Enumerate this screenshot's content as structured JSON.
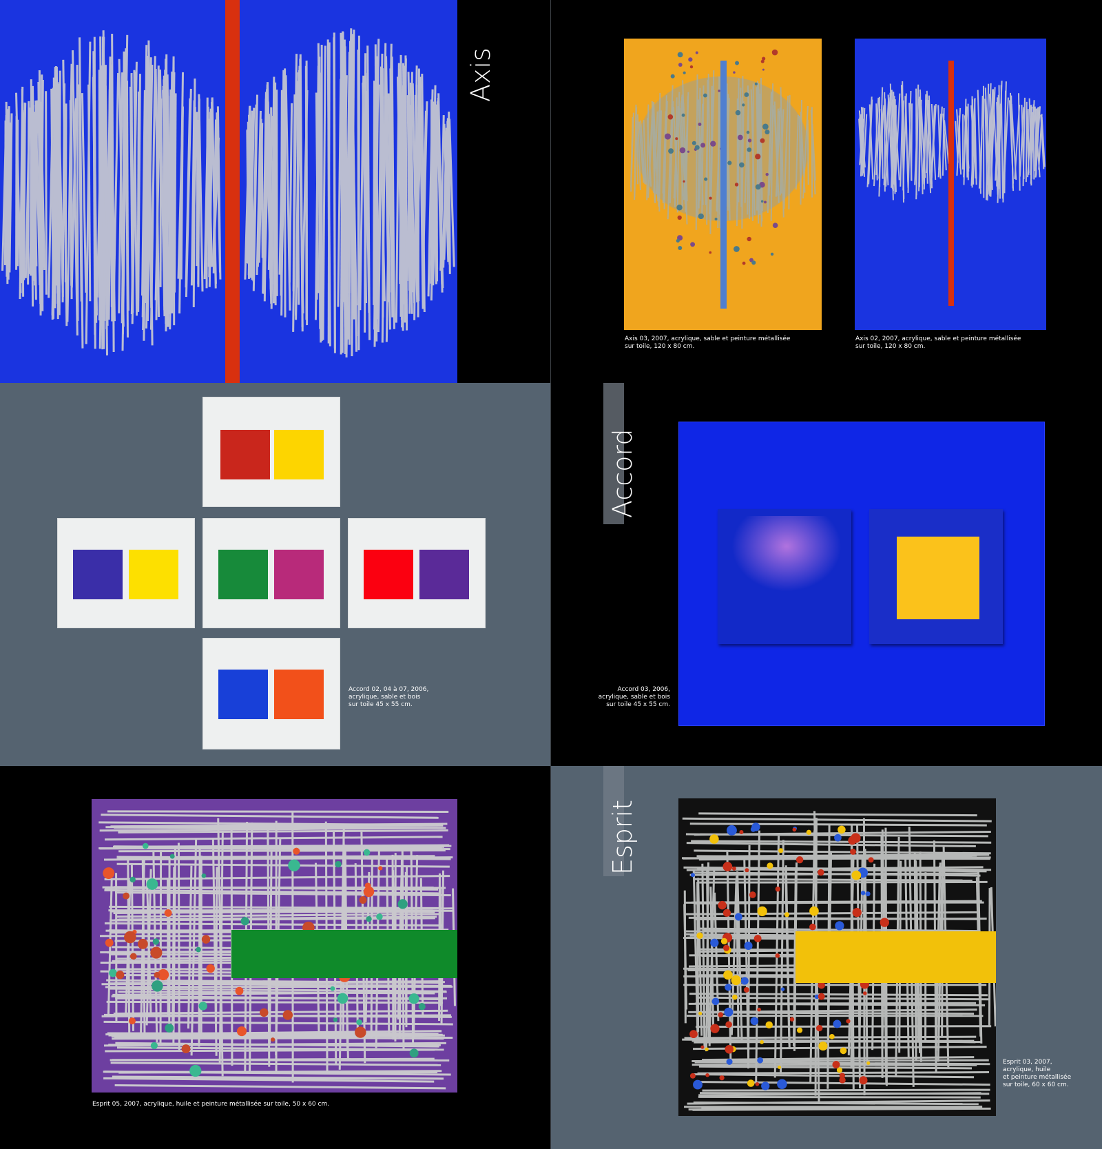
{
  "sections": {
    "axis": {
      "title": "Axis",
      "captions": {
        "axis03": "Axis 03, 2007, acrylique, sable et peinture métallisée\nsur toile, 120 x 80 cm.",
        "axis02": "Axis 02, 2007, acrylique, sable et peinture métallisée\nsur toile, 120 x 80 cm."
      }
    },
    "accord": {
      "title": "Accord",
      "captions": {
        "accord02": "Accord 02, 04 à 07, 2006,\nacrylique, sable et bois\nsur toile 45 x 55 cm.",
        "accord03": "Accord 03, 2006,\nacrylique, sable et bois\nsur toile 45 x 55 cm."
      }
    },
    "esprit": {
      "title": "Esprit",
      "captions": {
        "esprit05": "Esprit 05, 2007, acrylique, huile et peinture métallisée sur toile, 50 x 60 cm.",
        "esprit03": "Esprit 03, 2007,\nacrylique, huile\net peinture métallisée\nsur toile, 60 x 60 cm."
      }
    }
  },
  "colors": {
    "ultramarine": "#1530d8",
    "slate": "#556370",
    "ochre": "#f0a51e",
    "red_bar": "#d8300f",
    "silver": "#c8cbc9",
    "purple": "#6d3fa0",
    "green": "#0f8a2a",
    "yellow": "#f2c10a"
  }
}
